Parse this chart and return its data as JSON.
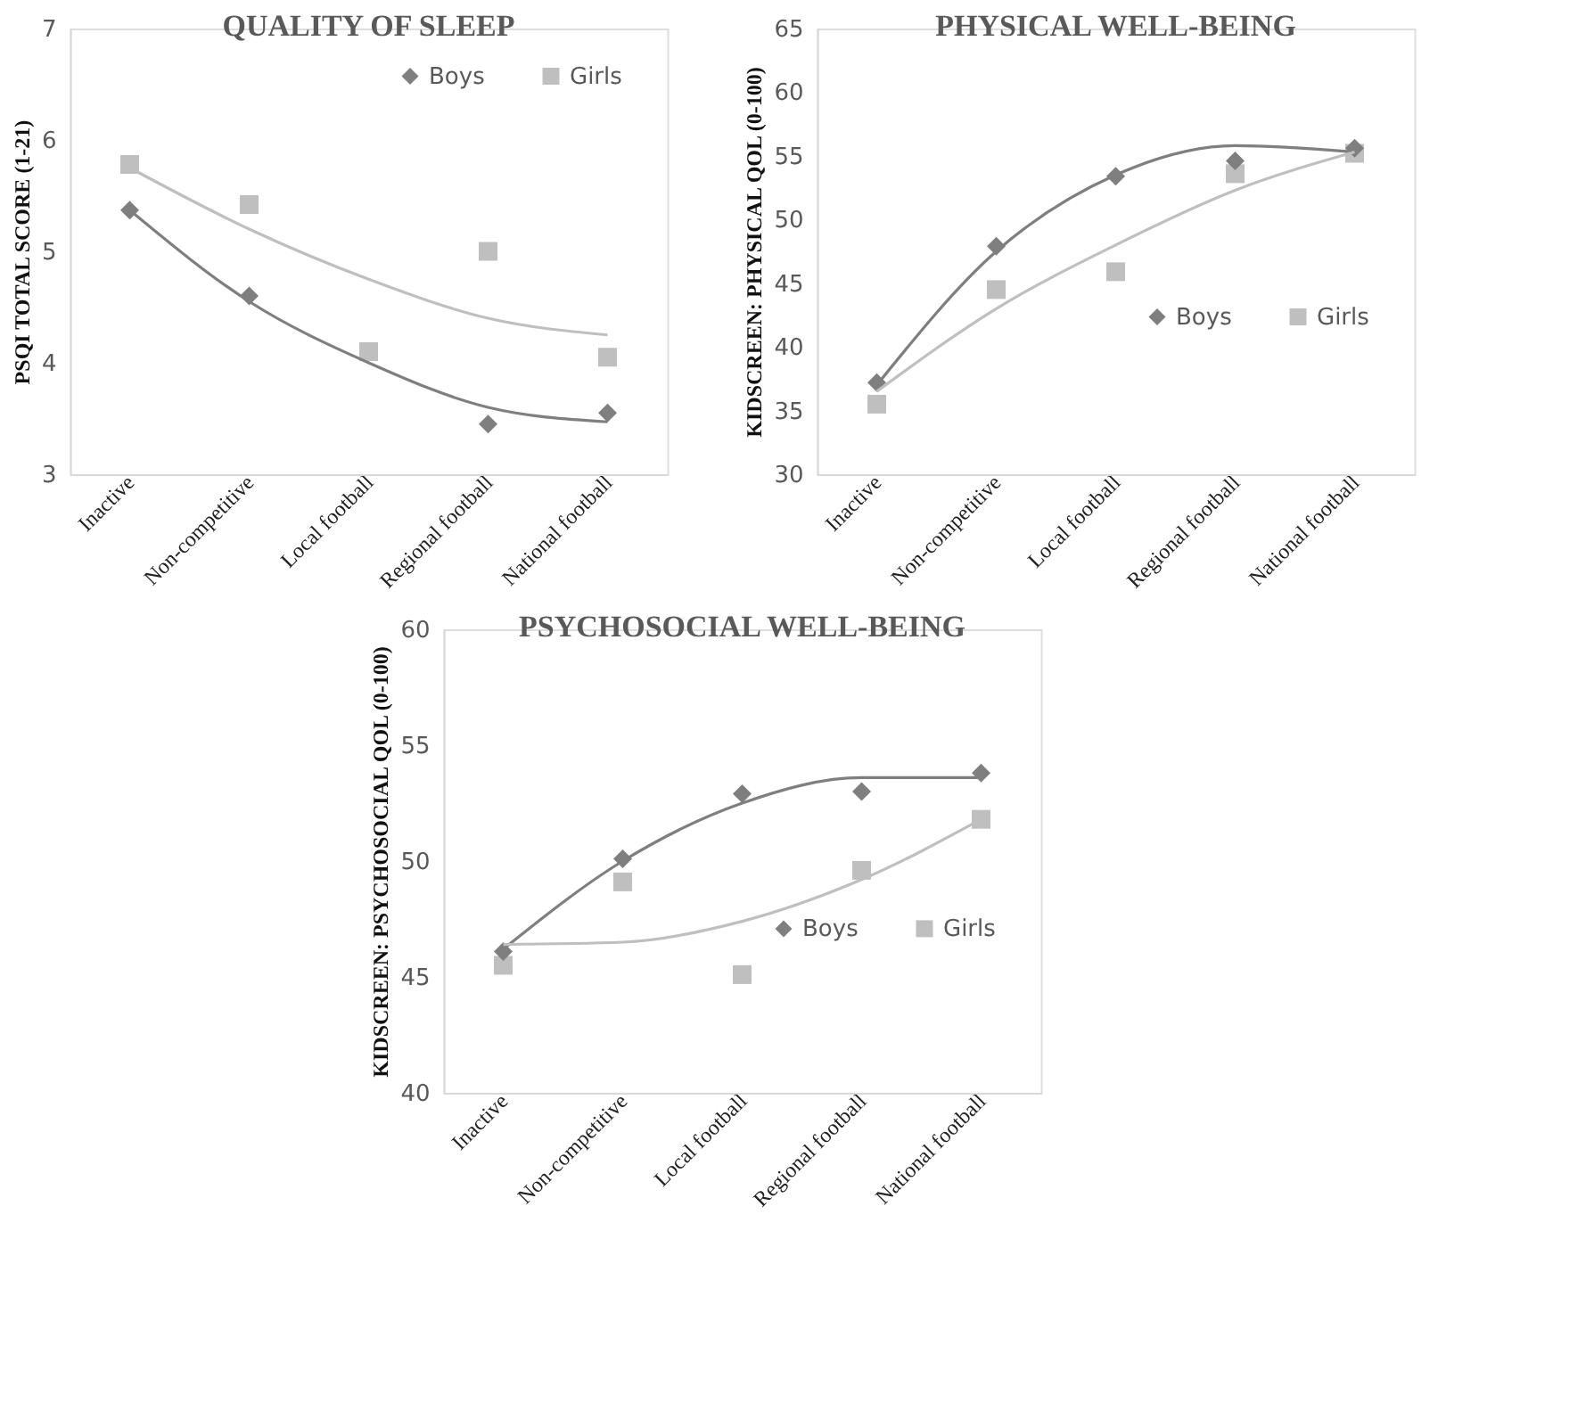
{
  "chart_data": [
    {
      "type": "scatter",
      "title": "QUALITY OF SLEEP",
      "ylabel": "PSQI TOTAL  SCORE (1-21)",
      "categories": [
        "Inactive",
        "Non-competitive",
        "Local football",
        "Regional football",
        "National football"
      ],
      "ylim": [
        3,
        7
      ],
      "yticks": [
        3,
        4,
        5,
        6,
        7
      ],
      "legend": "top right",
      "series": [
        {
          "name": "Boys",
          "color": "#7f7f7f",
          "marker": "diamond",
          "values": [
            5.37,
            4.6,
            null,
            3.45,
            3.55
          ]
        },
        {
          "name": "Girls",
          "color": "#bfbfbf",
          "marker": "square",
          "values": [
            5.78,
            5.42,
            4.1,
            5.0,
            4.05
          ]
        },
        {
          "type": "line",
          "color": "#7f7f7f",
          "values": [
            5.37,
            4.55,
            4.0,
            3.6,
            3.47
          ]
        },
        {
          "type": "line",
          "color": "#bfbfbf",
          "values": [
            5.75,
            5.2,
            4.75,
            4.4,
            4.25
          ]
        }
      ]
    },
    {
      "type": "scatter",
      "title": "PHYSICAL WELL-BEING",
      "ylabel": "KIDSCREEN:  PHYSICAL  QOL (0-100)",
      "categories": [
        "Inactive",
        "Non-competitive",
        "Local football",
        "Regional football",
        "National football"
      ],
      "ylim": [
        30,
        65
      ],
      "yticks": [
        30,
        35,
        40,
        45,
        50,
        55,
        60,
        65
      ],
      "legend": "right",
      "series": [
        {
          "name": "Boys",
          "color": "#7f7f7f",
          "marker": "diamond",
          "values": [
            37.2,
            47.9,
            53.4,
            54.6,
            55.6
          ]
        },
        {
          "name": "Girls",
          "color": "#bfbfbf",
          "marker": "square",
          "values": [
            35.5,
            44.5,
            45.9,
            53.6,
            55.2
          ]
        },
        {
          "type": "line",
          "color": "#7f7f7f",
          "values": [
            37.0,
            47.5,
            53.5,
            55.8,
            55.3
          ]
        },
        {
          "type": "line",
          "color": "#bfbfbf",
          "values": [
            36.5,
            43.0,
            48.0,
            52.3,
            55.3
          ]
        }
      ]
    },
    {
      "type": "scatter",
      "title": "PSYCHOSOCIAL WELL-BEING",
      "ylabel": "KIDSCREEN:  PSYCHOSOCIAL  QOL (0-100)",
      "categories": [
        "Inactive",
        "Non-competitive",
        "Local football",
        "Regional football",
        "National football"
      ],
      "ylim": [
        40,
        60
      ],
      "yticks": [
        40,
        45,
        50,
        55,
        60
      ],
      "legend": "right",
      "series": [
        {
          "name": "Boys",
          "color": "#7f7f7f",
          "marker": "diamond",
          "values": [
            46.1,
            50.1,
            52.9,
            53.0,
            53.8
          ]
        },
        {
          "name": "Girls",
          "color": "#bfbfbf",
          "marker": "square",
          "values": [
            45.5,
            49.1,
            45.1,
            49.6,
            51.8
          ]
        },
        {
          "type": "line",
          "color": "#7f7f7f",
          "values": [
            46.2,
            50.0,
            52.5,
            53.6,
            53.6
          ]
        },
        {
          "type": "line",
          "color": "#bfbfbf",
          "values": [
            46.4,
            46.5,
            47.4,
            49.2,
            51.8
          ]
        }
      ]
    }
  ]
}
